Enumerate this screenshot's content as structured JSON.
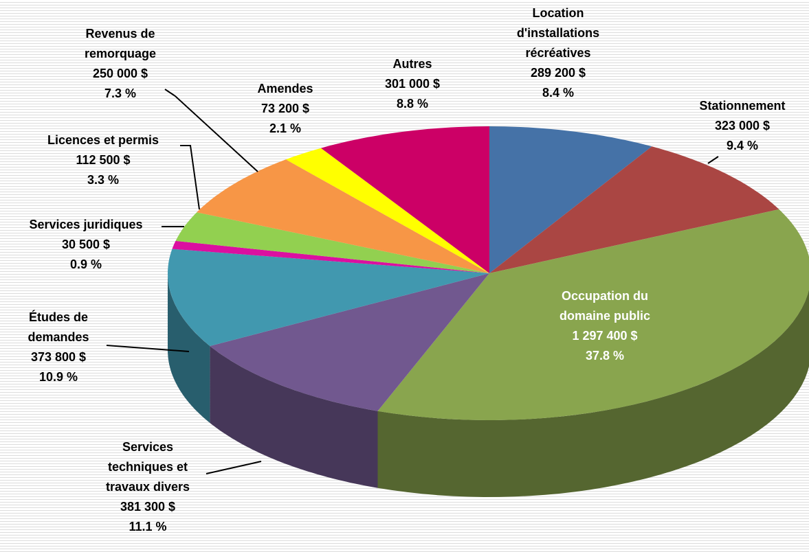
{
  "chart_data": {
    "type": "pie3d",
    "categories": [
      [
        "Location",
        "d'installations",
        "récréatives"
      ],
      [
        "Stationnement"
      ],
      [
        "Occupation du",
        "domaine public"
      ],
      [
        "Services",
        "techniques et",
        "travaux divers"
      ],
      [
        "Études de",
        "demandes"
      ],
      [
        "Services juridiques"
      ],
      [
        "Licences et permis"
      ],
      [
        "Revenus de",
        "remorquage"
      ],
      [
        "Amendes"
      ],
      [
        "Autres"
      ]
    ],
    "values": [
      289200,
      323000,
      1297400,
      381300,
      373800,
      30500,
      112500,
      250000,
      73200,
      301000
    ],
    "value_labels": [
      "289 200 $",
      "323 000 $",
      "1 297 400 $",
      "381 300 $",
      "373 800 $",
      "30 500 $",
      "112 500 $",
      "250 000 $",
      "73 200 $",
      "301 000 $"
    ],
    "percents": [
      8.4,
      9.4,
      37.8,
      11.1,
      10.9,
      0.9,
      3.3,
      7.3,
      2.1,
      8.8
    ],
    "percent_labels": [
      "8.4 %",
      "9.4 %",
      "37.8 %",
      "11.1 %",
      "10.9 %",
      "0.9 %",
      "3.3 %",
      "7.3 %",
      "2.1 %",
      "8.8 %"
    ],
    "colors": [
      "#4572a7",
      "#aa4643",
      "#89a54e",
      "#71588f",
      "#4198af",
      "#db0fa0",
      "#92d050",
      "#f79646",
      "#ffff00",
      "#cc0066"
    ]
  }
}
